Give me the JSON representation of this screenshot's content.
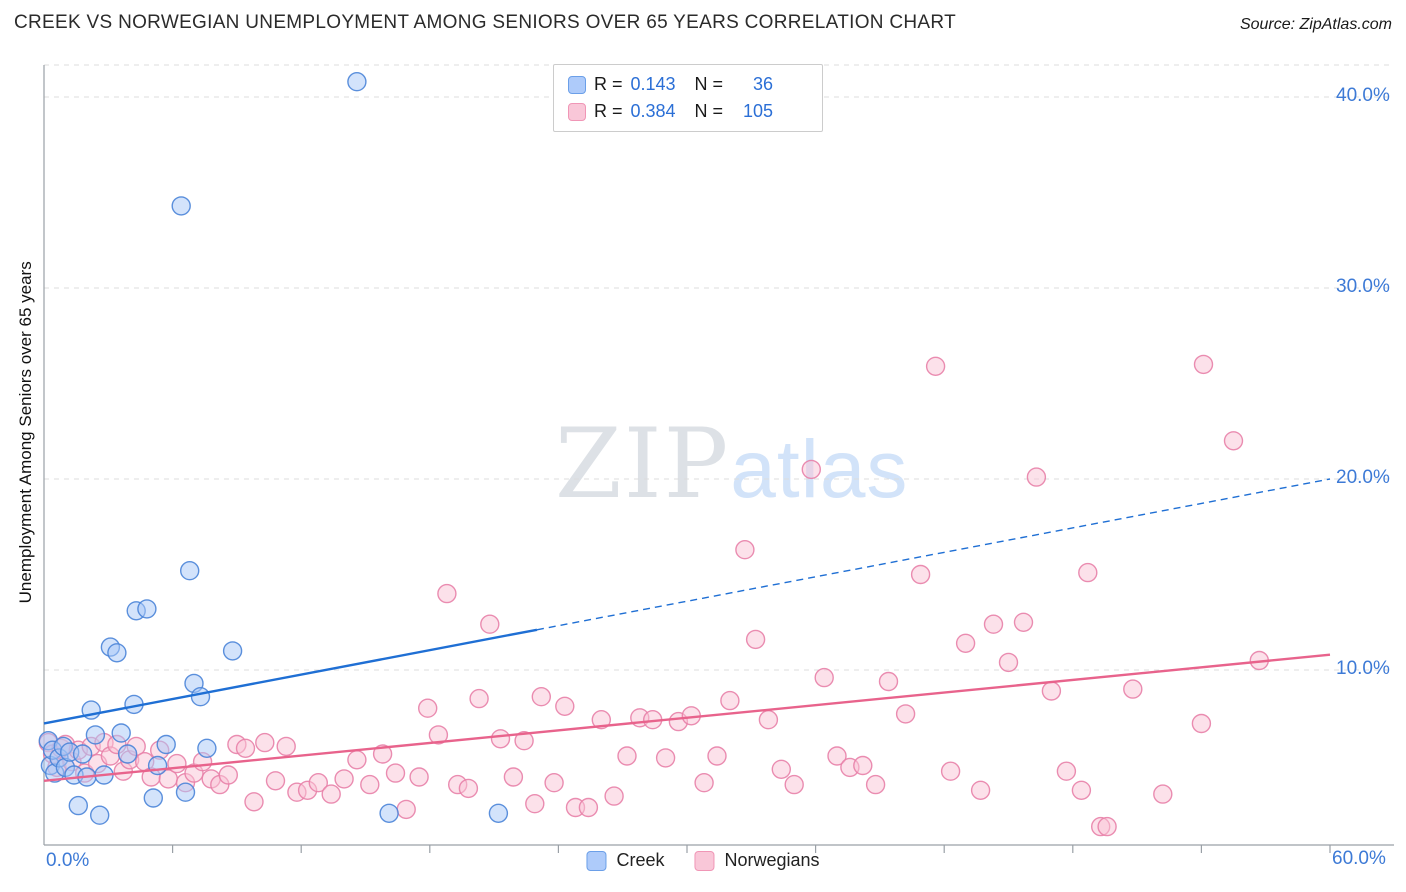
{
  "header": {
    "title": "CREEK VS NORWEGIAN UNEMPLOYMENT AMONG SENIORS OVER 65 YEARS CORRELATION CHART",
    "source": "Source: ZipAtlas.com"
  },
  "watermark": {
    "zip": "ZIP",
    "atlas": "atlas"
  },
  "axes": {
    "y_label": "Unemployment Among Seniors over 65 years",
    "x_tick_labels": [
      "0.0%",
      "60.0%"
    ],
    "y_tick_labels": [
      "40.0%",
      "30.0%",
      "20.0%",
      "10.0%"
    ]
  },
  "legend_box": {
    "rows": [
      {
        "series": "Creek",
        "r_label": "R =",
        "r": "0.143",
        "n_label": "N =",
        "n": "36"
      },
      {
        "series": "Norwegians",
        "r_label": "R =",
        "r": "0.384",
        "n_label": "N =",
        "n": "105"
      }
    ]
  },
  "bottom_legend": [
    {
      "label": "Creek",
      "color": "#aecbfa"
    },
    {
      "label": "Norwegians",
      "color": "#f9c7d8"
    }
  ],
  "colors": {
    "creek_fill": "#a8c8f8",
    "creek_stroke": "#4a84d8",
    "creek_trend": "#1f6fd4",
    "norwegian_fill": "#fac4d6",
    "norwegian_stroke": "#e881a8",
    "norwegian_trend": "#e8638c",
    "tick_label": "#3d7ad6",
    "grid": "#dcdcdc"
  },
  "chart_data": {
    "type": "scatter",
    "title": "CREEK VS NORWEGIAN UNEMPLOYMENT AMONG SENIORS OVER 65 YEARS CORRELATION CHART",
    "xlabel": "",
    "ylabel": "Unemployment Among Seniors over 65 years",
    "xlim": [
      0,
      60
    ],
    "ylim": [
      0,
      42
    ],
    "x_tick_values": [
      0,
      60
    ],
    "x_minor_tick_step": 6,
    "y_grid_values": [
      10,
      20,
      30,
      40
    ],
    "grid": true,
    "legend_position": "top-center",
    "series": [
      {
        "name": "Creek",
        "R": 0.143,
        "N": 36,
        "color_fill": "#a8c8f8",
        "color_stroke": "#4a84d8",
        "points": [
          [
            0.2,
            6.3
          ],
          [
            0.3,
            5.0
          ],
          [
            0.4,
            5.8
          ],
          [
            0.5,
            4.6
          ],
          [
            0.7,
            5.4
          ],
          [
            0.9,
            6.0
          ],
          [
            1.0,
            4.9
          ],
          [
            1.2,
            5.7
          ],
          [
            1.4,
            4.5
          ],
          [
            1.6,
            2.9
          ],
          [
            1.8,
            5.6
          ],
          [
            2.0,
            4.4
          ],
          [
            2.2,
            7.9
          ],
          [
            2.4,
            6.6
          ],
          [
            2.6,
            2.4
          ],
          [
            2.8,
            4.5
          ],
          [
            3.1,
            11.2
          ],
          [
            3.4,
            10.9
          ],
          [
            3.6,
            6.7
          ],
          [
            3.9,
            5.6
          ],
          [
            4.2,
            8.2
          ],
          [
            4.3,
            13.1
          ],
          [
            4.8,
            13.2
          ],
          [
            5.1,
            3.3
          ],
          [
            5.3,
            5.0
          ],
          [
            5.7,
            6.1
          ],
          [
            6.4,
            34.3
          ],
          [
            6.6,
            3.6
          ],
          [
            6.8,
            15.2
          ],
          [
            7.0,
            9.3
          ],
          [
            7.3,
            8.6
          ],
          [
            7.6,
            5.9
          ],
          [
            8.8,
            11.0
          ],
          [
            14.6,
            40.8
          ],
          [
            16.1,
            2.5
          ],
          [
            21.2,
            2.5
          ]
        ]
      },
      {
        "name": "Norwegians",
        "R": 0.384,
        "N": 105,
        "color_fill": "#fac4d6",
        "color_stroke": "#e881a8",
        "points": [
          [
            0.2,
            6.2
          ],
          [
            0.4,
            5.6
          ],
          [
            0.6,
            4.9
          ],
          [
            0.8,
            5.9
          ],
          [
            1.0,
            6.1
          ],
          [
            1.3,
            5.2
          ],
          [
            1.6,
            5.8
          ],
          [
            1.9,
            4.6
          ],
          [
            2.2,
            6.0
          ],
          [
            2.5,
            5.1
          ],
          [
            2.8,
            6.2
          ],
          [
            3.1,
            5.5
          ],
          [
            3.4,
            6.1
          ],
          [
            3.7,
            4.7
          ],
          [
            4.0,
            5.3
          ],
          [
            4.3,
            6.0
          ],
          [
            4.7,
            5.2
          ],
          [
            5.0,
            4.4
          ],
          [
            5.4,
            5.8
          ],
          [
            5.8,
            4.3
          ],
          [
            6.2,
            5.1
          ],
          [
            6.6,
            4.1
          ],
          [
            7.0,
            4.6
          ],
          [
            7.4,
            5.2
          ],
          [
            7.8,
            4.3
          ],
          [
            8.2,
            4.0
          ],
          [
            8.6,
            4.5
          ],
          [
            9.0,
            6.1
          ],
          [
            9.4,
            5.9
          ],
          [
            9.8,
            3.1
          ],
          [
            10.3,
            6.2
          ],
          [
            10.8,
            4.2
          ],
          [
            11.3,
            6.0
          ],
          [
            11.8,
            3.6
          ],
          [
            12.3,
            3.7
          ],
          [
            12.8,
            4.1
          ],
          [
            13.4,
            3.5
          ],
          [
            14.0,
            4.3
          ],
          [
            14.6,
            5.3
          ],
          [
            15.2,
            4.0
          ],
          [
            15.8,
            5.6
          ],
          [
            16.4,
            4.6
          ],
          [
            16.9,
            2.7
          ],
          [
            17.5,
            4.4
          ],
          [
            17.9,
            8.0
          ],
          [
            18.4,
            6.6
          ],
          [
            18.8,
            14.0
          ],
          [
            19.3,
            4.0
          ],
          [
            19.8,
            3.8
          ],
          [
            20.3,
            8.5
          ],
          [
            20.8,
            12.4
          ],
          [
            21.3,
            6.4
          ],
          [
            21.9,
            4.4
          ],
          [
            22.4,
            6.3
          ],
          [
            22.9,
            3.0
          ],
          [
            23.2,
            8.6
          ],
          [
            23.8,
            4.1
          ],
          [
            24.3,
            8.1
          ],
          [
            24.8,
            2.8
          ],
          [
            25.4,
            2.8
          ],
          [
            26.0,
            7.4
          ],
          [
            26.6,
            3.4
          ],
          [
            27.2,
            5.5
          ],
          [
            27.8,
            7.5
          ],
          [
            28.4,
            7.4
          ],
          [
            29.0,
            5.4
          ],
          [
            29.6,
            7.3
          ],
          [
            30.2,
            7.6
          ],
          [
            30.8,
            4.1
          ],
          [
            31.4,
            5.5
          ],
          [
            32.0,
            8.4
          ],
          [
            32.7,
            16.3
          ],
          [
            33.2,
            11.6
          ],
          [
            33.8,
            7.4
          ],
          [
            34.4,
            4.8
          ],
          [
            35.0,
            4.0
          ],
          [
            35.8,
            20.5
          ],
          [
            36.4,
            9.6
          ],
          [
            37.0,
            5.5
          ],
          [
            37.6,
            4.9
          ],
          [
            38.2,
            5.0
          ],
          [
            38.8,
            4.0
          ],
          [
            39.4,
            9.4
          ],
          [
            40.2,
            7.7
          ],
          [
            40.9,
            15.0
          ],
          [
            41.6,
            25.9
          ],
          [
            42.3,
            4.7
          ],
          [
            43.0,
            11.4
          ],
          [
            43.7,
            3.7
          ],
          [
            44.3,
            12.4
          ],
          [
            45.0,
            10.4
          ],
          [
            45.7,
            12.5
          ],
          [
            46.3,
            20.1
          ],
          [
            47.0,
            8.9
          ],
          [
            47.7,
            4.7
          ],
          [
            48.4,
            3.7
          ],
          [
            48.7,
            15.1
          ],
          [
            49.3,
            1.8
          ],
          [
            49.6,
            1.8
          ],
          [
            50.8,
            9.0
          ],
          [
            52.2,
            3.5
          ],
          [
            54.0,
            7.2
          ],
          [
            54.1,
            26.0
          ],
          [
            55.5,
            22.0
          ],
          [
            56.7,
            10.5
          ]
        ]
      }
    ],
    "trend_lines": [
      {
        "series": "Creek",
        "color": "#1f6fd4",
        "solid_from_x": 0,
        "solid_to_x": 23,
        "dash_to_x": 60,
        "y_at_0": 7.2,
        "y_at_60": 20.0
      },
      {
        "series": "Norwegians",
        "color": "#e8638c",
        "solid_from_x": 0,
        "solid_to_x": 60,
        "y_at_0": 4.2,
        "y_at_60": 10.8
      }
    ]
  }
}
